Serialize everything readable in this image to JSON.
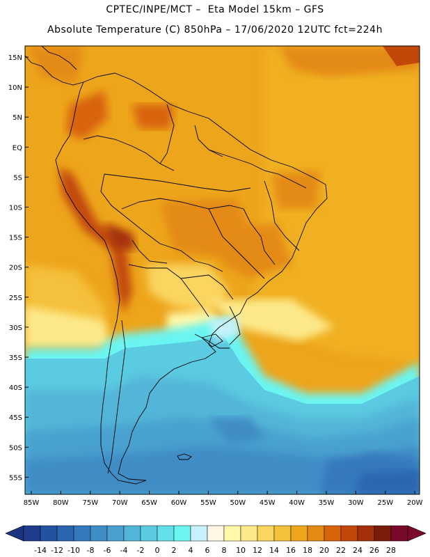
{
  "header": {
    "title_line1": "CPTEC/INPE/MCT –  Eta Model 15km – GFS",
    "title_line2": "Absolute Temperature (C) 850hPa – 17/06/2020 12UTC fct=224h"
  },
  "axes": {
    "lat_labels": [
      "15N",
      "10N",
      "5N",
      "EQ",
      "5S",
      "10S",
      "15S",
      "20S",
      "25S",
      "30S",
      "35S",
      "40S",
      "45S",
      "50S",
      "55S"
    ],
    "lon_labels": [
      "85W",
      "80W",
      "75W",
      "70W",
      "65W",
      "60W",
      "55W",
      "50W",
      "45W",
      "40W",
      "35W",
      "30W",
      "25W",
      "20W"
    ]
  },
  "colorbar": {
    "levels": [
      "-14",
      "-12",
      "-10",
      "-8",
      "-6",
      "-4",
      "-2",
      "0",
      "2",
      "4",
      "6",
      "8",
      "10",
      "12",
      "14",
      "16",
      "18",
      "20",
      "22",
      "24",
      "26",
      "28"
    ],
    "colors": [
      "#1f3d8c",
      "#2352a0",
      "#2a66b0",
      "#3479bc",
      "#3f8dc6",
      "#4aa1cf",
      "#52b5d8",
      "#5acbe0",
      "#62dfe8",
      "#6af5f2",
      "#c8f2fb",
      "#fff6e6",
      "#fff8a8",
      "#fde98a",
      "#fad560",
      "#f5c03a",
      "#eda51c",
      "#e48a12",
      "#d8640a",
      "#c24808",
      "#a4300a",
      "#7a1c0a",
      "#7a0a2a"
    ],
    "under_color": "#1a3480",
    "over_color": "#7a0a2a"
  }
}
